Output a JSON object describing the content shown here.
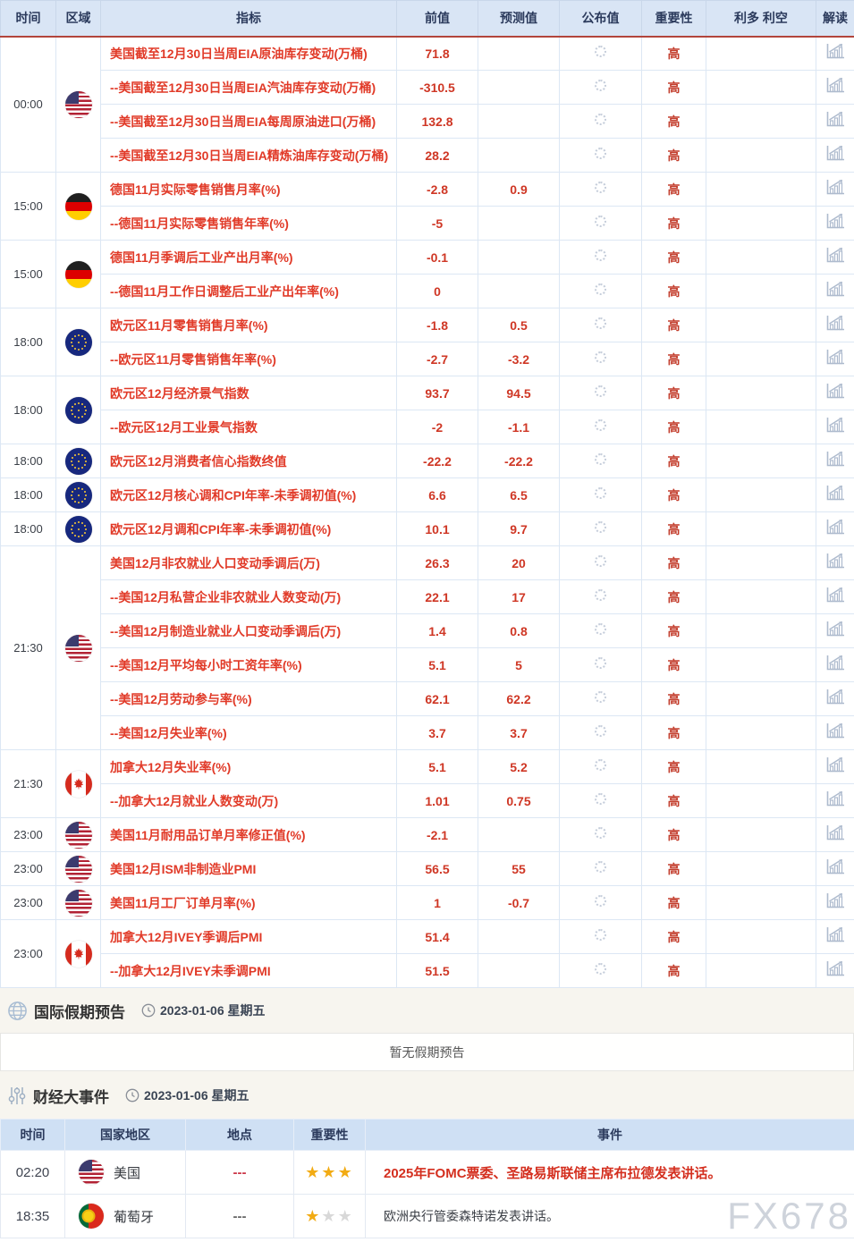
{
  "watermark": "FX678",
  "calendar": {
    "headers": [
      "时间",
      "区域",
      "指标",
      "前值",
      "预测值",
      "公布值",
      "重要性",
      "利多 利空",
      "解读"
    ],
    "importance_high": "高",
    "icons": {
      "publish_pending": "spinner-icon",
      "interpret": "chart-icon"
    },
    "groups": [
      {
        "time": "00:00",
        "region": "us",
        "rows": [
          {
            "indicator": "美国截至12月30日当周EIA原油库存变动(万桶)",
            "prev": "71.8",
            "forecast": ""
          },
          {
            "indicator": "--美国截至12月30日当周EIA汽油库存变动(万桶)",
            "prev": "-310.5",
            "forecast": ""
          },
          {
            "indicator": "--美国截至12月30日当周EIA每周原油进口(万桶)",
            "prev": "132.8",
            "forecast": ""
          },
          {
            "indicator": "--美国截至12月30日当周EIA精炼油库存变动(万桶)",
            "prev": "28.2",
            "forecast": ""
          }
        ]
      },
      {
        "time": "15:00",
        "region": "de",
        "rows": [
          {
            "indicator": "德国11月实际零售销售月率(%)",
            "prev": "-2.8",
            "forecast": "0.9"
          },
          {
            "indicator": "--德国11月实际零售销售年率(%)",
            "prev": "-5",
            "forecast": ""
          }
        ]
      },
      {
        "time": "15:00",
        "region": "de",
        "rows": [
          {
            "indicator": "德国11月季调后工业产出月率(%)",
            "prev": "-0.1",
            "forecast": ""
          },
          {
            "indicator": "--德国11月工作日调整后工业产出年率(%)",
            "prev": "0",
            "forecast": ""
          }
        ]
      },
      {
        "time": "18:00",
        "region": "eu",
        "rows": [
          {
            "indicator": "欧元区11月零售销售月率(%)",
            "prev": "-1.8",
            "forecast": "0.5"
          },
          {
            "indicator": "--欧元区11月零售销售年率(%)",
            "prev": "-2.7",
            "forecast": "-3.2"
          }
        ]
      },
      {
        "time": "18:00",
        "region": "eu",
        "rows": [
          {
            "indicator": "欧元区12月经济景气指数",
            "prev": "93.7",
            "forecast": "94.5"
          },
          {
            "indicator": "--欧元区12月工业景气指数",
            "prev": "-2",
            "forecast": "-1.1"
          }
        ]
      },
      {
        "time": "18:00",
        "region": "eu",
        "rows": [
          {
            "indicator": "欧元区12月消费者信心指数终值",
            "prev": "-22.2",
            "forecast": "-22.2"
          }
        ]
      },
      {
        "time": "18:00",
        "region": "eu",
        "rows": [
          {
            "indicator": "欧元区12月核心调和CPI年率-未季调初值(%)",
            "prev": "6.6",
            "forecast": "6.5"
          }
        ]
      },
      {
        "time": "18:00",
        "region": "eu",
        "rows": [
          {
            "indicator": "欧元区12月调和CPI年率-未季调初值(%)",
            "prev": "10.1",
            "forecast": "9.7"
          }
        ]
      },
      {
        "time": "21:30",
        "region": "us",
        "rows": [
          {
            "indicator": "美国12月非农就业人口变动季调后(万)",
            "prev": "26.3",
            "forecast": "20"
          },
          {
            "indicator": "--美国12月私营企业非农就业人数变动(万)",
            "prev": "22.1",
            "forecast": "17"
          },
          {
            "indicator": "--美国12月制造业就业人口变动季调后(万)",
            "prev": "1.4",
            "forecast": "0.8"
          },
          {
            "indicator": "--美国12月平均每小时工资年率(%)",
            "prev": "5.1",
            "forecast": "5"
          },
          {
            "indicator": "--美国12月劳动参与率(%)",
            "prev": "62.1",
            "forecast": "62.2"
          },
          {
            "indicator": "--美国12月失业率(%)",
            "prev": "3.7",
            "forecast": "3.7"
          }
        ]
      },
      {
        "time": "21:30",
        "region": "ca",
        "rows": [
          {
            "indicator": "加拿大12月失业率(%)",
            "prev": "5.1",
            "forecast": "5.2"
          },
          {
            "indicator": "--加拿大12月就业人数变动(万)",
            "prev": "1.01",
            "forecast": "0.75"
          }
        ]
      },
      {
        "time": "23:00",
        "region": "us",
        "rows": [
          {
            "indicator": "美国11月耐用品订单月率修正值(%)",
            "prev": "-2.1",
            "forecast": ""
          }
        ]
      },
      {
        "time": "23:00",
        "region": "us",
        "rows": [
          {
            "indicator": "美国12月ISM非制造业PMI",
            "prev": "56.5",
            "forecast": "55"
          }
        ]
      },
      {
        "time": "23:00",
        "region": "us",
        "rows": [
          {
            "indicator": "美国11月工厂订单月率(%)",
            "prev": "1",
            "forecast": "-0.7"
          }
        ]
      },
      {
        "time": "23:00",
        "region": "ca",
        "rows": [
          {
            "indicator": "加拿大12月IVEY季调后PMI",
            "prev": "51.4",
            "forecast": ""
          },
          {
            "indicator": "--加拿大12月IVEY未季调PMI",
            "prev": "51.5",
            "forecast": ""
          }
        ]
      }
    ]
  },
  "holiday_section": {
    "icon": "globe-icon",
    "title": "国际假期预告",
    "clock_icon": "clock-icon",
    "date": "2023-01-06 星期五",
    "empty_text": "暂无假期预告"
  },
  "events_section": {
    "icon": "sliders-icon",
    "title": "财经大事件",
    "clock_icon": "clock-icon",
    "date": "2023-01-06 星期五",
    "headers": [
      "时间",
      "国家地区",
      "地点",
      "重要性",
      "事件"
    ],
    "rows": [
      {
        "time": "02:20",
        "country": "美国",
        "flag": "us",
        "location": "---",
        "stars": 3,
        "event": "2025年FOMC票委、圣路易斯联储主席布拉德发表讲话。",
        "highlight": true
      },
      {
        "time": "18:35",
        "country": "葡萄牙",
        "flag": "pt",
        "location": "---",
        "stars": 1,
        "event": "欧洲央行管委森特诺发表讲话。",
        "highlight": false
      }
    ]
  },
  "colors": {
    "header_bg": "#d9e5f5",
    "header_text": "#2b3a5c",
    "header_underline": "#b2453c",
    "indicator_red": "#e13a28",
    "value_red": "#cf3725",
    "importance_red": "#c23b2a",
    "star_gold": "#f2ab13",
    "star_gray": "#d8d8d8",
    "cream_bg": "#f7f5ef"
  }
}
